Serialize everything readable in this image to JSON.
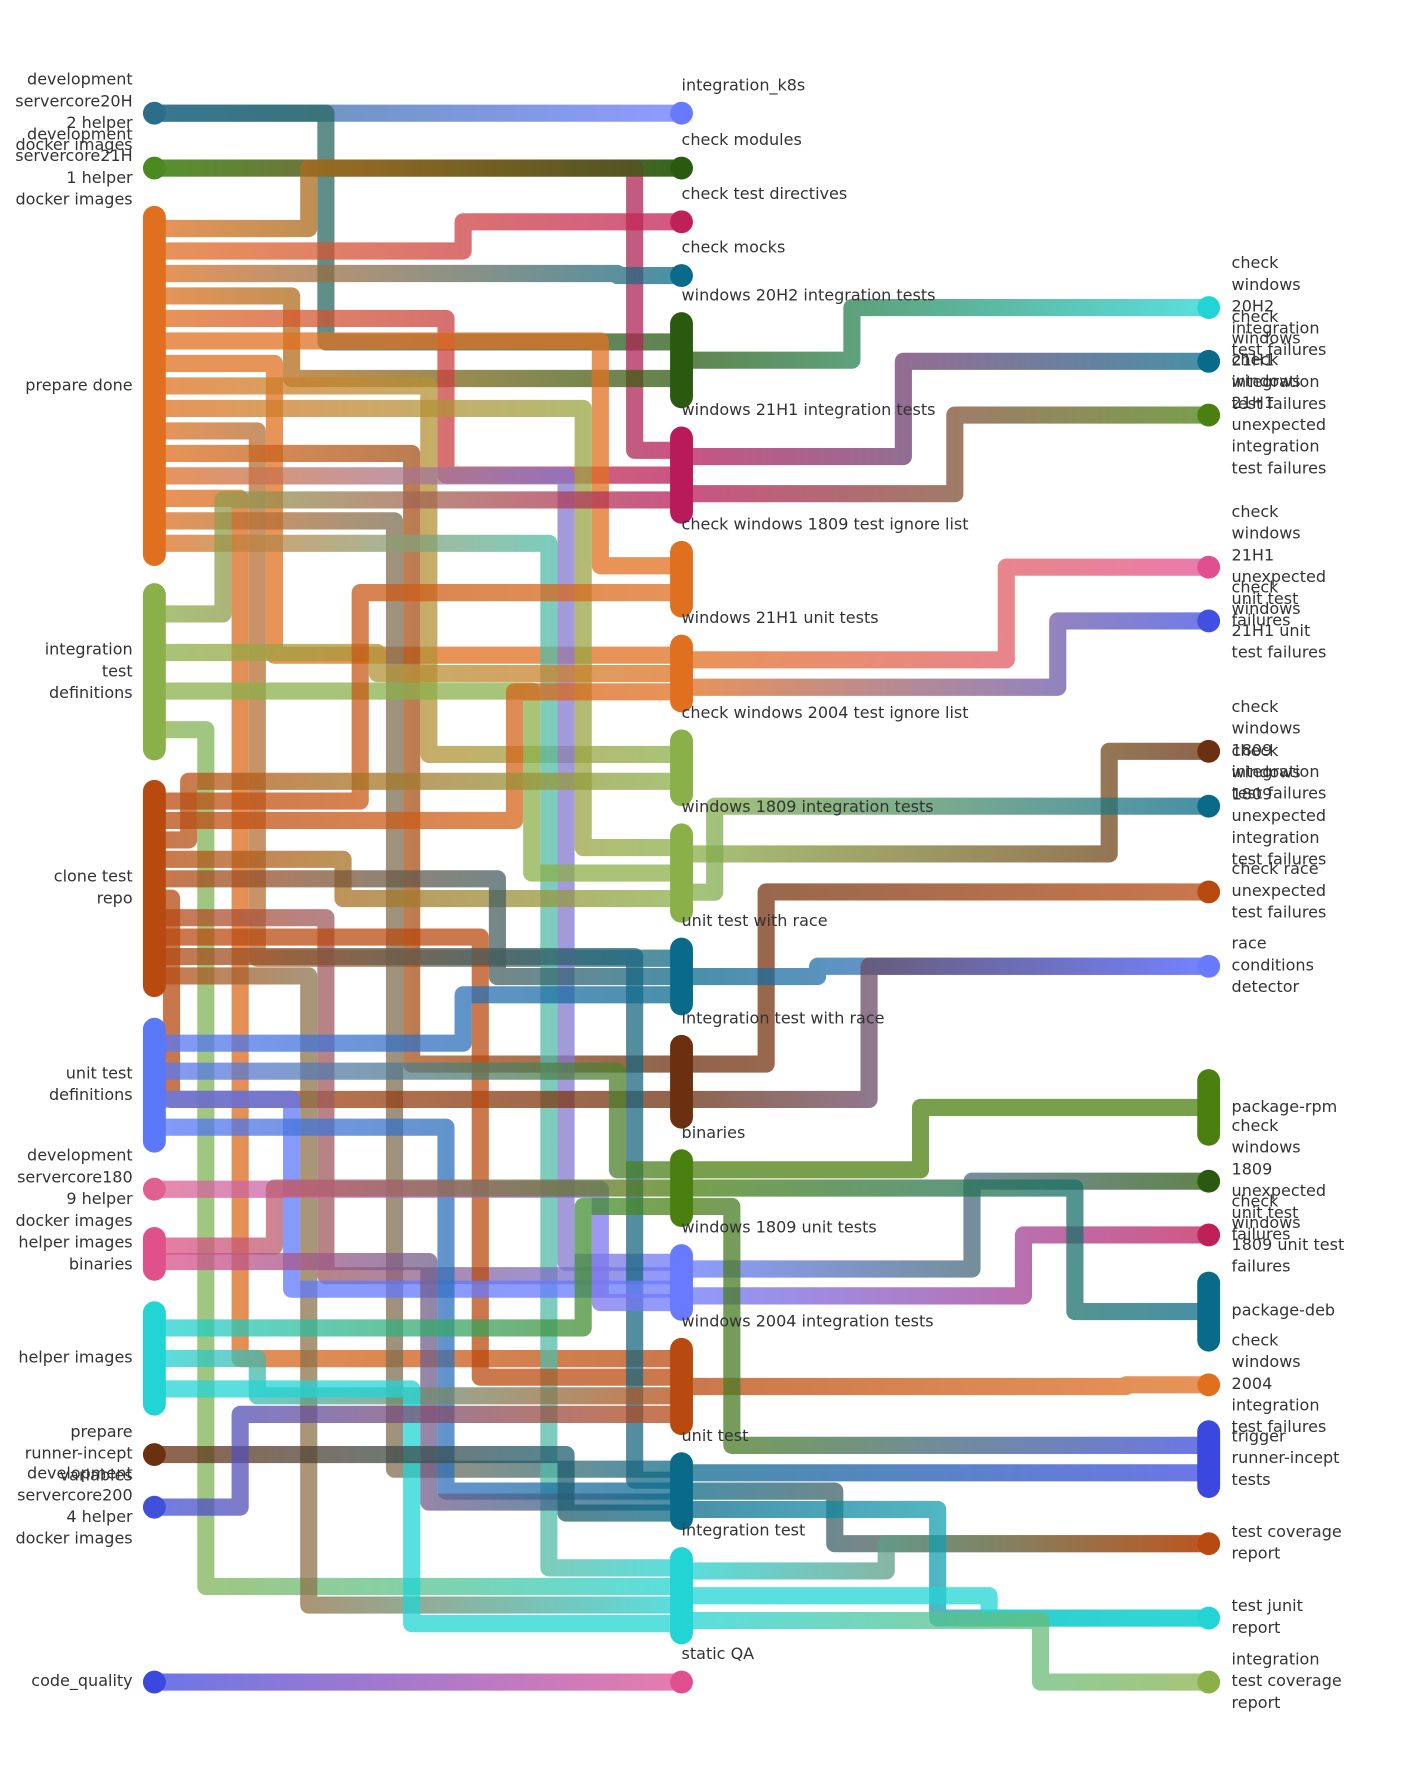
{
  "columns": [
    {
      "nodes": [
        {
          "label": "development servercore20H2 helper docker images",
          "color": "#2a6e8a"
        },
        {
          "label": "development servercore21H1 helper docker images",
          "color": "#4a8a20"
        },
        {
          "label": "prepare done",
          "color": "#e07020"
        },
        {
          "label": "integration test definitions",
          "color": "#8ab04a"
        },
        {
          "label": "clone test repo",
          "color": "#b84a10"
        },
        {
          "label": "unit test definitions",
          "color": "#5a78f8"
        },
        {
          "label": "development servercore1809 helper docker images",
          "color": "#e06090"
        },
        {
          "label": "helper images binaries",
          "color": "#e0508a"
        },
        {
          "label": "helper images",
          "color": "#22d4d4"
        },
        {
          "label": "prepare runner-incept variables",
          "color": "#6a3010"
        },
        {
          "label": "development servercore2004 helper docker images",
          "color": "#4050d8"
        },
        {
          "label": "code_quality",
          "color": "#3a48e0"
        }
      ]
    },
    {
      "nodes": [
        {
          "label": "integration_k8s",
          "color": "#6a7aff"
        },
        {
          "label": "check modules",
          "color": "#2a5a10"
        },
        {
          "label": "check test directives",
          "color": "#c0205a"
        },
        {
          "label": "check mocks",
          "color": "#0a6a8a"
        },
        {
          "label": "windows 20H2 integration tests",
          "color": "#2a5a10"
        },
        {
          "label": "windows 21H1 integration tests",
          "color": "#b81a5a"
        },
        {
          "label": "check windows 1809 test ignore list",
          "color": "#e07020"
        },
        {
          "label": "windows 21H1 unit tests",
          "color": "#e07020"
        },
        {
          "label": "check windows 2004 test ignore list",
          "color": "#8ab04a"
        },
        {
          "label": "windows 1809 integration tests",
          "color": "#8ab04a"
        },
        {
          "label": "unit test with race",
          "color": "#0a6a8a"
        },
        {
          "label": "integration test with race",
          "color": "#6a3010"
        },
        {
          "label": "binaries",
          "color": "#4a8010"
        },
        {
          "label": "windows 1809 unit tests",
          "color": "#6a7aff"
        },
        {
          "label": "windows 2004 integration tests",
          "color": "#b84a10"
        },
        {
          "label": "unit test",
          "color": "#0a6a8a"
        },
        {
          "label": "integration test",
          "color": "#22d4d4"
        },
        {
          "label": "static QA",
          "color": "#e05090"
        }
      ]
    },
    {
      "nodes": [
        {
          "label": "check windows 20H2 integration test failures",
          "color": "#22d4d4"
        },
        {
          "label": "check windows 21H1 integration test failures",
          "color": "#0a6a8a"
        },
        {
          "label": "check windows 21H1 unexpected integration test failures",
          "color": "#4a8010"
        },
        {
          "label": "check windows 21H1 unexpected unit test failures",
          "color": "#e05090"
        },
        {
          "label": "check windows 21H1 unit test failures",
          "color": "#4050e0"
        },
        {
          "label": "check windows 1809 integration test failures",
          "color": "#6a3010"
        },
        {
          "label": "check windows 1809 unexpected integration test failures",
          "color": "#0a6a8a"
        },
        {
          "label": "check race unexpected test failures",
          "color": "#b84a10"
        },
        {
          "label": "race conditions detector",
          "color": "#6a7aff"
        },
        {
          "label": "package-rpm",
          "color": "#4a8010"
        },
        {
          "label": "check windows 1809 unexpected unit test failures",
          "color": "#2a5a10"
        },
        {
          "label": "check windows 1809 unit test failures",
          "color": "#c0205a"
        },
        {
          "label": "package-deb",
          "color": "#0a6a8a"
        },
        {
          "label": "check windows 2004 integration test failures",
          "color": "#e07020"
        },
        {
          "label": "trigger runner-incept tests",
          "color": "#3a48e0"
        },
        {
          "label": "test coverage report",
          "color": "#b84a10"
        },
        {
          "label": "test junit report",
          "color": "#22d4d4"
        },
        {
          "label": "integration test coverage report",
          "color": "#8ab04a"
        }
      ]
    }
  ]
}
